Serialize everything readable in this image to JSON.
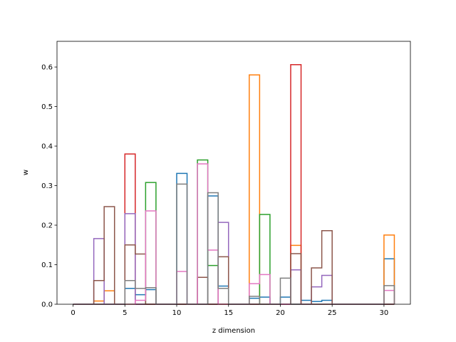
{
  "chart_data": {
    "type": "histogram-step",
    "title": "",
    "xlabel": "z dimension",
    "ylabel": "w",
    "xlim": [
      -1.55,
      32.55
    ],
    "ylim": [
      0,
      0.665
    ],
    "xticks": [
      0,
      5,
      10,
      15,
      20,
      25,
      30
    ],
    "yticks": [
      0.0,
      0.1,
      0.2,
      0.3,
      0.4,
      0.5,
      0.6
    ],
    "bin_edges": [
      0,
      1,
      2,
      3,
      4,
      5,
      6,
      7,
      8,
      9,
      10,
      11,
      12,
      13,
      14,
      15,
      16,
      17,
      18,
      19,
      20,
      21,
      22,
      23,
      24,
      25,
      26,
      27,
      28,
      29,
      30,
      31
    ],
    "series": [
      {
        "color": "#1f77b4",
        "values": [
          0,
          0,
          0,
          0,
          0,
          0.04,
          0.024,
          0.037,
          0,
          0,
          0.331,
          0,
          0,
          0.274,
          0.046,
          0,
          0,
          0.015,
          0.018,
          0,
          0.018,
          0,
          0.01,
          0.007,
          0.01,
          0,
          0,
          0,
          0,
          0,
          0.115
        ]
      },
      {
        "color": "#ff7f0e",
        "values": [
          0,
          0,
          0.008,
          0.034,
          0,
          0,
          0,
          0,
          0,
          0,
          0,
          0,
          0,
          0,
          0,
          0,
          0,
          0.58,
          0,
          0,
          0,
          0.149,
          0,
          0,
          0,
          0,
          0,
          0,
          0,
          0,
          0.175
        ]
      },
      {
        "color": "#2ca02c",
        "values": [
          0,
          0,
          0,
          0,
          0,
          0,
          0,
          0.308,
          0,
          0,
          0,
          0,
          0.365,
          0.098,
          0,
          0,
          0,
          0,
          0.227,
          0,
          0,
          0,
          0,
          0,
          0,
          0,
          0,
          0,
          0,
          0,
          0
        ]
      },
      {
        "color": "#d62728",
        "values": [
          0,
          0,
          0,
          0,
          0,
          0.38,
          0,
          0,
          0,
          0,
          0,
          0,
          0,
          0,
          0,
          0,
          0,
          0,
          0,
          0,
          0,
          0.606,
          0,
          0,
          0,
          0,
          0,
          0,
          0,
          0,
          0
        ]
      },
      {
        "color": "#9467bd",
        "values": [
          0,
          0,
          0.166,
          0,
          0,
          0.229,
          0,
          0,
          0,
          0,
          0,
          0,
          0,
          0,
          0.207,
          0,
          0,
          0,
          0,
          0,
          0,
          0.087,
          0,
          0.044,
          0.073,
          0,
          0,
          0,
          0,
          0,
          0
        ]
      },
      {
        "color": "#8c564b",
        "values": [
          0,
          0,
          0.06,
          0.247,
          0,
          0.15,
          0.127,
          0,
          0,
          0,
          0,
          0,
          0.068,
          0,
          0.12,
          0,
          0,
          0,
          0,
          0,
          0,
          0.128,
          0,
          0.092,
          0.186,
          0,
          0,
          0,
          0,
          0,
          0
        ]
      },
      {
        "color": "#e377c2",
        "values": [
          0,
          0,
          0,
          0,
          0,
          0,
          0.01,
          0.236,
          0,
          0,
          0.083,
          0,
          0.355,
          0.137,
          0,
          0,
          0,
          0.052,
          0.075,
          0,
          0,
          0,
          0,
          0,
          0,
          0,
          0,
          0,
          0,
          0,
          0.035
        ]
      },
      {
        "color": "#7f7f7f",
        "values": [
          0,
          0,
          0,
          0,
          0,
          0.06,
          0.04,
          0.042,
          0,
          0,
          0.304,
          0,
          0,
          0.282,
          0.04,
          0,
          0,
          0.02,
          0,
          0,
          0.066,
          0,
          0,
          0,
          0,
          0,
          0,
          0,
          0,
          0,
          0.047
        ]
      }
    ]
  }
}
